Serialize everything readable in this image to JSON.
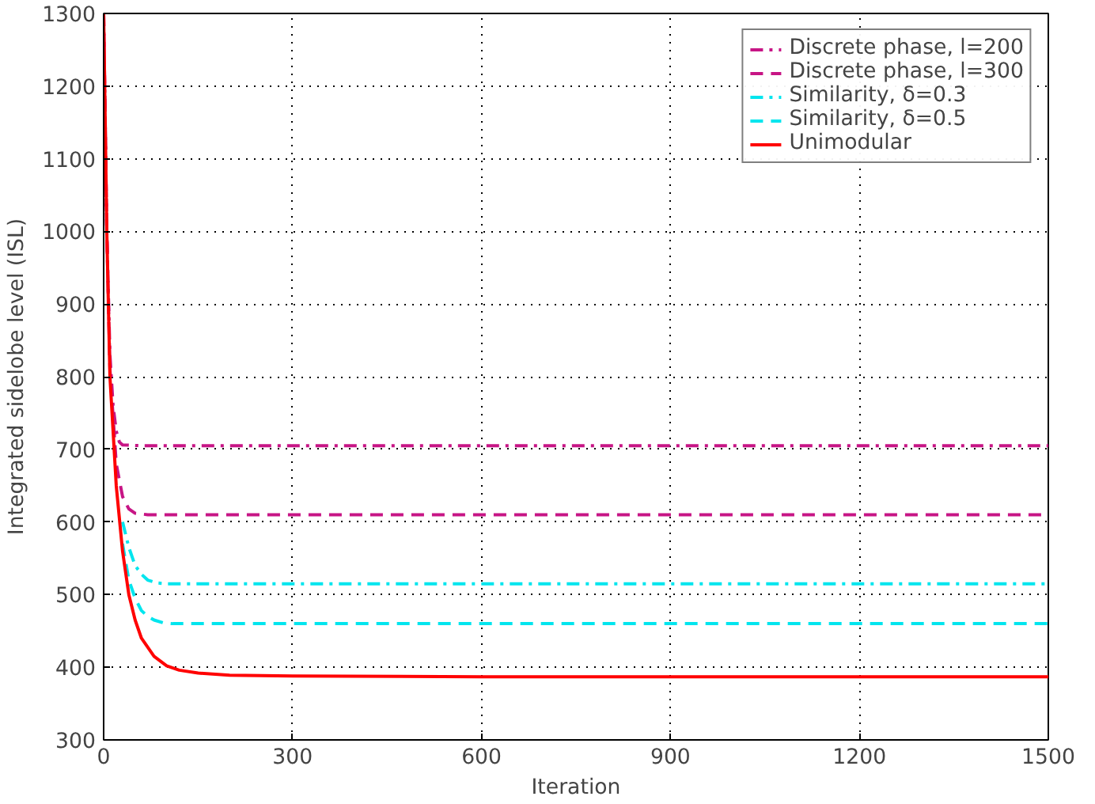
{
  "chart_data": {
    "type": "line",
    "xlabel": "Iteration",
    "ylabel": "Integrated sidelobe level (ISL)",
    "xlim": [
      0,
      1500
    ],
    "ylim": [
      300,
      1300
    ],
    "xticks": [
      0,
      300,
      600,
      900,
      1200,
      1500
    ],
    "yticks": [
      300,
      400,
      500,
      600,
      700,
      800,
      900,
      1000,
      1100,
      1200,
      1300
    ],
    "grid": true,
    "legend": "top right",
    "marker": "none",
    "series": [
      {
        "name": "Discrete phase, l=200",
        "color": "#c71585",
        "line_style": "dashdot",
        "x": [
          0,
          5,
          10,
          15,
          20,
          25,
          30,
          60,
          1500
        ],
        "values": [
          1300,
          1000,
          830,
          760,
          725,
          710,
          706,
          705,
          705
        ]
      },
      {
        "name": "Discrete phase, l=300",
        "color": "#c71585",
        "line_style": "dashed",
        "x": [
          0,
          5,
          10,
          20,
          30,
          40,
          50,
          70,
          1500
        ],
        "values": [
          1300,
          1000,
          810,
          680,
          635,
          618,
          612,
          610,
          610
        ]
      },
      {
        "name": "Similarity, δ=0.3",
        "color": "#00e5ee",
        "line_style": "dashdot",
        "x": [
          30,
          40,
          50,
          60,
          70,
          85,
          100,
          1500
        ],
        "values": [
          600,
          565,
          540,
          528,
          520,
          516,
          515,
          515
        ]
      },
      {
        "name": "Similarity, δ=0.5",
        "color": "#00e5ee",
        "line_style": "dashed",
        "x": [
          30,
          40,
          50,
          60,
          70,
          80,
          95,
          110,
          1500
        ],
        "values": [
          570,
          520,
          495,
          478,
          470,
          465,
          461,
          460,
          460
        ]
      },
      {
        "name": "Unimodular",
        "color": "#ff0000",
        "line_style": "solid",
        "x": [
          0,
          5,
          10,
          20,
          30,
          40,
          50,
          60,
          80,
          100,
          120,
          150,
          200,
          300,
          600,
          1500
        ],
        "values": [
          1300,
          1000,
          800,
          650,
          560,
          500,
          465,
          440,
          415,
          402,
          396,
          392,
          389,
          388,
          387,
          387
        ]
      }
    ]
  }
}
